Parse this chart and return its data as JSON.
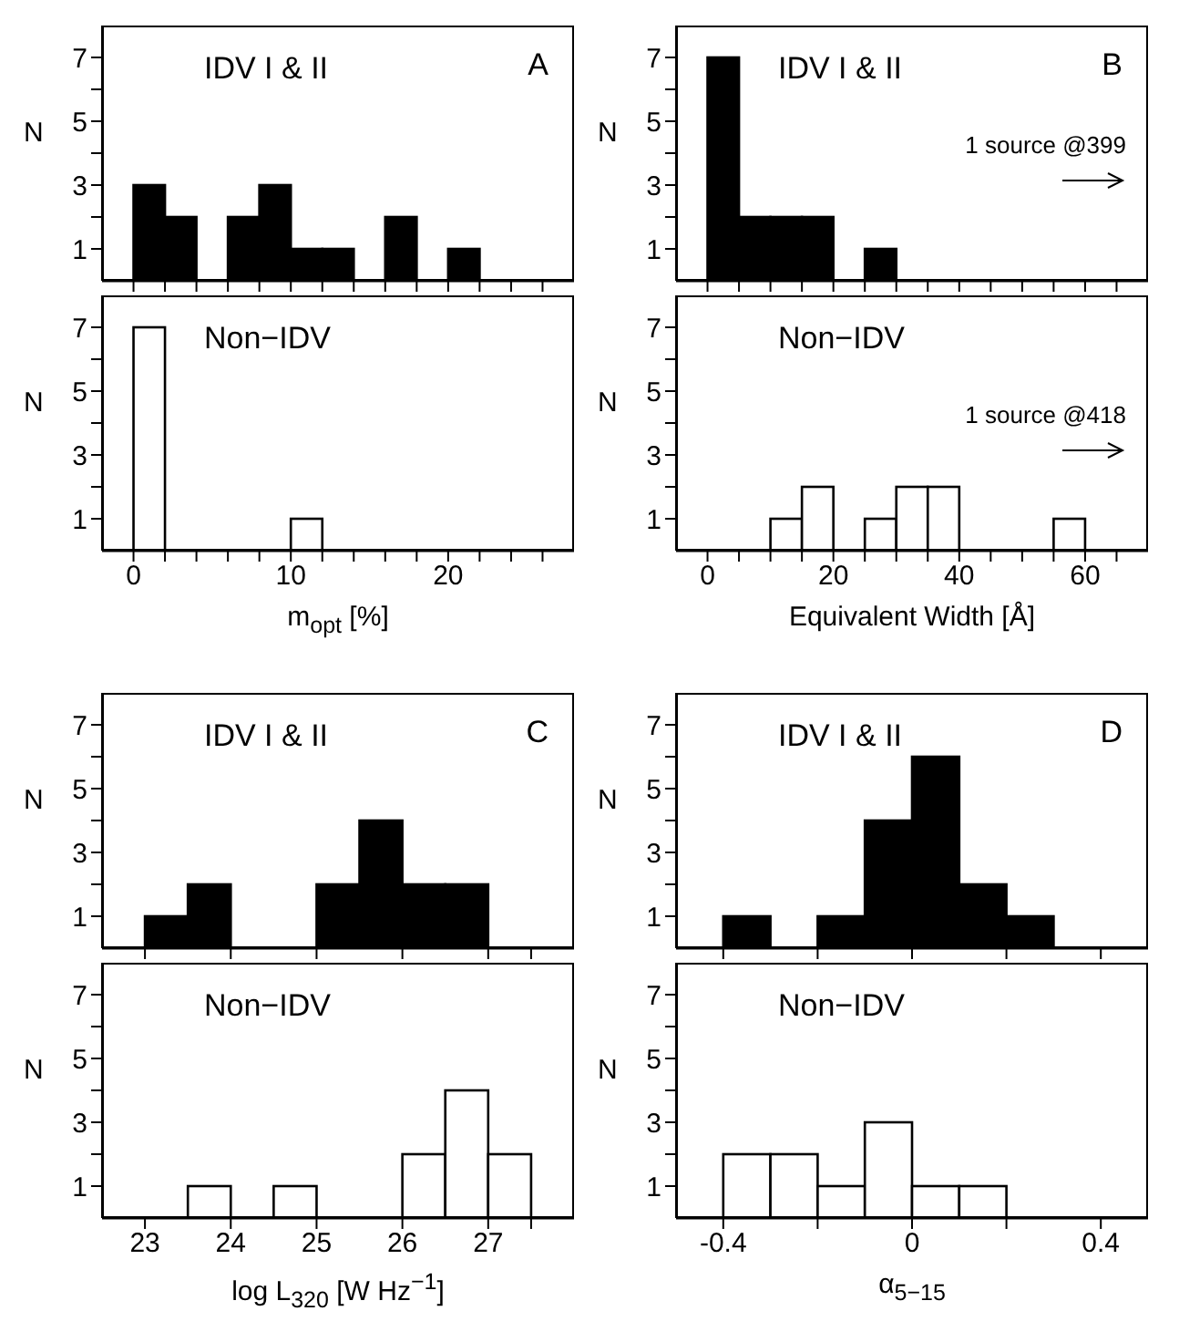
{
  "chart_data": [
    {
      "type": "histogram",
      "title": "A",
      "ylabel": "N",
      "annotations": [
        "IDV I & II"
      ],
      "bins": [
        0,
        2,
        4,
        6,
        8,
        10,
        12,
        14,
        16,
        18,
        20,
        22
      ],
      "values": [
        3,
        2,
        0,
        2,
        3,
        1,
        1,
        0,
        2,
        0,
        1
      ],
      "color": "#000000",
      "xlim": [
        -2,
        28
      ],
      "xticks": [
        0,
        {
          "value": 2,
          "label": null
        },
        {
          "value": 4,
          "label": null
        },
        {
          "value": 6,
          "label": null
        },
        {
          "value": 8,
          "label": null
        },
        10,
        {
          "value": 12,
          "label": null
        },
        {
          "value": 14,
          "label": null
        },
        {
          "value": 16,
          "label": null
        },
        {
          "value": 18,
          "label": null
        },
        20,
        {
          "value": 22,
          "label": null
        },
        {
          "value": 24,
          "label": null
        },
        {
          "value": 26,
          "label": null
        }
      ],
      "ylim": [
        0,
        8
      ],
      "yticks": [
        1,
        {
          "value": 2,
          "label": null
        },
        3,
        {
          "value": 4,
          "label": null
        },
        5,
        {
          "value": 6,
          "label": null
        },
        7
      ],
      "tick_labels": "y"
    },
    {
      "type": "histogram",
      "title": "B",
      "ylabel": "N",
      "annotations": [
        "IDV I & II",
        "1 source @399"
      ],
      "bins": [
        0,
        5,
        10,
        15,
        20,
        25,
        30
      ],
      "values": [
        7,
        2,
        2,
        2,
        0,
        1
      ],
      "color": "#000000",
      "xlim": [
        -5,
        70
      ],
      "xticks": [
        0,
        {
          "value": 5,
          "label": null
        },
        {
          "value": 10,
          "label": null
        },
        {
          "value": 15,
          "label": null
        },
        20,
        {
          "value": 25,
          "label": null
        },
        {
          "value": 30,
          "label": null
        },
        {
          "value": 35,
          "label": null
        },
        40,
        {
          "value": 45,
          "label": null
        },
        {
          "value": 50,
          "label": null
        },
        {
          "value": 55,
          "label": null
        },
        60,
        {
          "value": 65,
          "label": null
        }
      ],
      "ylim": [
        0,
        8
      ],
      "yticks": [
        1,
        {
          "value": 2,
          "label": null
        },
        3,
        {
          "value": 4,
          "label": null
        },
        5,
        {
          "value": 6,
          "label": null
        },
        7
      ],
      "tick_labels": "y"
    },
    {
      "type": "histogram",
      "ylabel": "N",
      "xlabel": "m$_{opt}$ [%]",
      "annotations": [
        "Non−IDV"
      ],
      "bins": [
        0,
        2,
        4,
        6,
        8,
        10,
        12
      ],
      "values": [
        7,
        0,
        0,
        0,
        0,
        1
      ],
      "color": "#ffffff",
      "xlim": [
        -2,
        28
      ],
      "xticks": [
        0,
        {
          "value": 2,
          "label": null
        },
        {
          "value": 4,
          "label": null
        },
        {
          "value": 6,
          "label": null
        },
        {
          "value": 8,
          "label": null
        },
        10,
        {
          "value": 12,
          "label": null
        },
        {
          "value": 14,
          "label": null
        },
        {
          "value": 16,
          "label": null
        },
        {
          "value": 18,
          "label": null
        },
        20,
        {
          "value": 22,
          "label": null
        },
        {
          "value": 24,
          "label": null
        },
        {
          "value": 26,
          "label": null
        }
      ],
      "ylim": [
        0,
        8
      ],
      "yticks": [
        1,
        {
          "value": 2,
          "label": null
        },
        3,
        {
          "value": 4,
          "label": null
        },
        5,
        {
          "value": 6,
          "label": null
        },
        7
      ]
    },
    {
      "type": "histogram",
      "ylabel": "N",
      "xlabel": "Equivalent Width [Å]",
      "annotations": [
        "Non−IDV",
        "1 source @418"
      ],
      "bins": [
        10,
        15,
        20,
        25,
        30,
        35,
        40,
        45,
        50,
        55,
        60
      ],
      "values": [
        1,
        2,
        0,
        1,
        2,
        2,
        0,
        0,
        0,
        1
      ],
      "color": "#ffffff",
      "xlim": [
        -5,
        70
      ],
      "xticks": [
        0,
        {
          "value": 5,
          "label": null
        },
        {
          "value": 10,
          "label": null
        },
        {
          "value": 15,
          "label": null
        },
        20,
        {
          "value": 25,
          "label": null
        },
        {
          "value": 30,
          "label": null
        },
        {
          "value": 35,
          "label": null
        },
        40,
        {
          "value": 45,
          "label": null
        },
        {
          "value": 50,
          "label": null
        },
        {
          "value": 55,
          "label": null
        },
        60,
        {
          "value": 65,
          "label": null
        }
      ],
      "ylim": [
        0,
        8
      ],
      "yticks": [
        1,
        {
          "value": 2,
          "label": null
        },
        3,
        {
          "value": 4,
          "label": null
        },
        5,
        {
          "value": 6,
          "label": null
        },
        7
      ]
    },
    {
      "type": "histogram",
      "title": "C",
      "ylabel": "N",
      "annotations": [
        "IDV I & II"
      ],
      "bins": [
        23,
        23.5,
        24,
        24.5,
        25,
        25.5,
        26,
        26.5,
        27
      ],
      "values": [
        1,
        2,
        0,
        0,
        2,
        4,
        2,
        2
      ],
      "color": "#000000",
      "xlim": [
        22.5,
        28
      ],
      "xticks": [
        23,
        24,
        25,
        26,
        27,
        {
          "value": 27.5,
          "label": null
        }
      ],
      "ylim": [
        0,
        8
      ],
      "yticks": [
        1,
        {
          "value": 2,
          "label": null
        },
        3,
        {
          "value": 4,
          "label": null
        },
        5,
        {
          "value": 6,
          "label": null
        },
        7
      ],
      "tick_labels": "y"
    },
    {
      "type": "histogram",
      "title": "D",
      "ylabel": "N",
      "annotations": [
        "IDV I & II"
      ],
      "bins": [
        -0.4,
        -0.3,
        -0.2,
        -0.1,
        0,
        0.1,
        0.2,
        0.3
      ],
      "values": [
        1,
        0,
        1,
        4,
        6,
        2,
        1
      ],
      "color": "#000000",
      "xlim": [
        -0.5,
        0.5
      ],
      "xticks": [
        -0.4,
        {
          "value": -0.2,
          "label": null
        },
        0,
        {
          "value": 0.2,
          "label": null
        },
        0.4
      ],
      "ylim": [
        0,
        8
      ],
      "yticks": [
        1,
        {
          "value": 2,
          "label": null
        },
        3,
        {
          "value": 4,
          "label": null
        },
        5,
        {
          "value": 6,
          "label": null
        },
        7
      ],
      "tick_labels": "y"
    },
    {
      "type": "histogram",
      "ylabel": "N",
      "xlabel": "log L$_{320}$ [W Hz$^{−1}$]",
      "annotations": [
        "Non−IDV"
      ],
      "bins": [
        23,
        23.5,
        24,
        24.5,
        25,
        25.5,
        26,
        26.5,
        27,
        27.5
      ],
      "values": [
        0,
        1,
        0,
        1,
        0,
        0,
        2,
        4,
        2
      ],
      "color": "#ffffff",
      "xlim": [
        22.5,
        28
      ],
      "xticks": [
        23,
        24,
        25,
        26,
        27,
        {
          "value": 27.5,
          "label": null
        }
      ],
      "ylim": [
        0,
        8
      ],
      "yticks": [
        1,
        {
          "value": 2,
          "label": null
        },
        3,
        {
          "value": 4,
          "label": null
        },
        5,
        {
          "value": 6,
          "label": null
        },
        7
      ]
    },
    {
      "type": "histogram",
      "ylabel": "N",
      "xlabel": "α$_{5−15}$",
      "annotations": [
        "Non−IDV"
      ],
      "bins": [
        -0.4,
        -0.3,
        -0.2,
        -0.1,
        0,
        0.1,
        0.2
      ],
      "values": [
        2,
        2,
        1,
        3,
        1,
        1
      ],
      "color": "#ffffff",
      "xlim": [
        -0.5,
        0.5
      ],
      "xticks": [
        -0.4,
        {
          "value": -0.2,
          "label": null
        },
        0,
        {
          "value": 0.2,
          "label": null
        },
        0.4
      ],
      "ylim": [
        0,
        8
      ],
      "yticks": [
        1,
        {
          "value": 2,
          "label": null
        },
        3,
        {
          "value": 4,
          "label": null
        },
        5,
        {
          "value": 6,
          "label": null
        },
        7
      ]
    }
  ]
}
